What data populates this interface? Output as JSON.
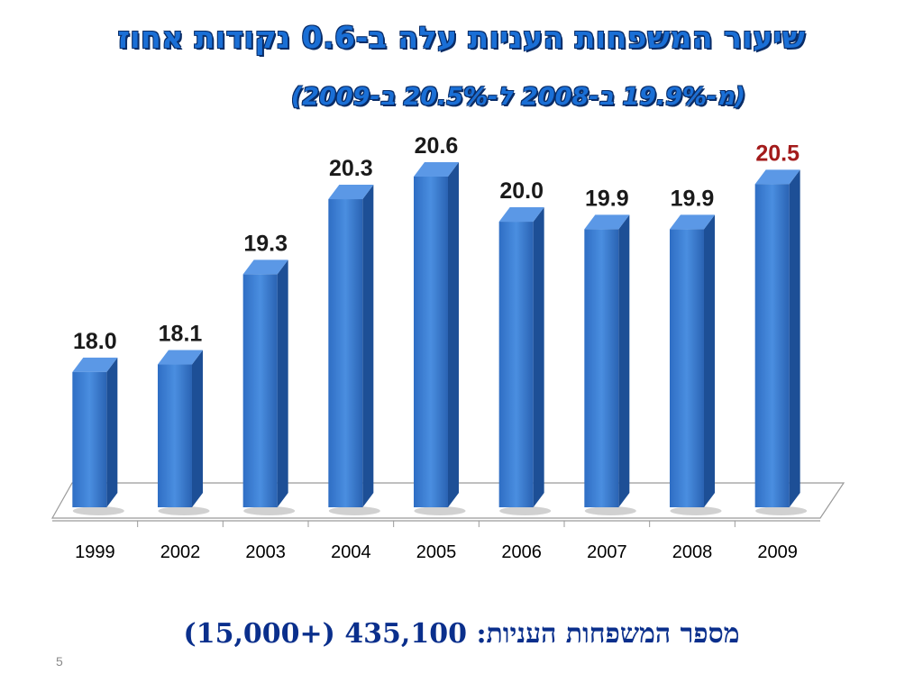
{
  "slide": {
    "title": "שיעור המשפחות העניות עלה ב-0.6 נקודות אחוז",
    "subtitle": "(מ-19.9% ב-2008 ל-20.5% ב-2009)",
    "footer": "מספר המשפחות העניות: 435,100 (+15,000)",
    "page_number": "5"
  },
  "chart_data": {
    "type": "bar",
    "categories": [
      "1999",
      "2002",
      "2003",
      "2004",
      "2005",
      "2006",
      "2007",
      "2008",
      "2009"
    ],
    "values": [
      18.0,
      18.1,
      19.3,
      20.3,
      20.6,
      20.0,
      19.9,
      19.9,
      20.5
    ],
    "data_labels": [
      "18.0",
      "18.1",
      "19.3",
      "20.3",
      "20.6",
      "20.0",
      "19.9",
      "19.9",
      "20.5"
    ],
    "highlight_index": 8,
    "ylim": [
      16.2,
      21.2
    ],
    "grid": false,
    "legend": "none",
    "colors": {
      "bar_front": "#3a7fd8",
      "bar_side": "#1d4f96",
      "bar_top": "#5b98e6",
      "label": "#1a1a1a",
      "highlight_label": "#a31b1b",
      "floor": "#ffffff",
      "floor_line": "#9a9a9a"
    }
  }
}
